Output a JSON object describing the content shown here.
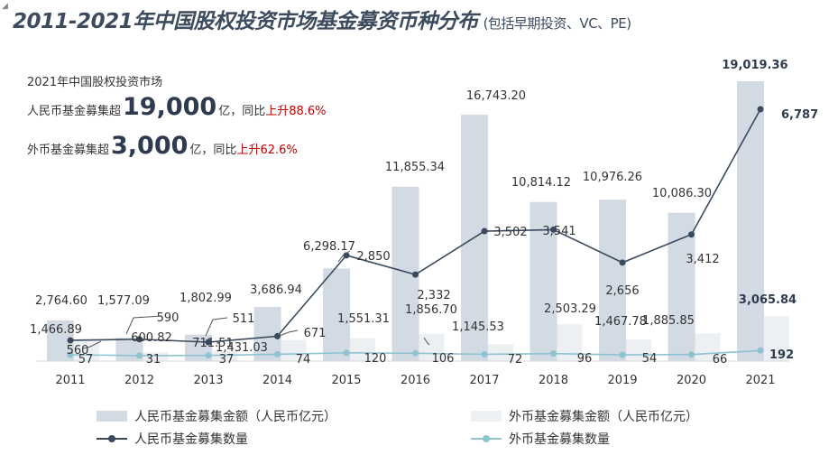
{
  "title": "2011-2021年中国股权投资市场基金募资币种分布",
  "subtitle": "(包括早期投资、VC、PE)",
  "annotation": {
    "line1": "2021年中国股权投资市场",
    "rmb_prefix": "人民币基金募集超",
    "rmb_big": "19,000",
    "rmb_suffix": "亿，同比",
    "rmb_change": "上升88.6%",
    "fx_prefix": "外币基金募集超",
    "fx_big": "3,000",
    "fx_suffix": "亿，同比",
    "fx_change": "上升62.6%"
  },
  "colors": {
    "rmb_bar": "#d2dae3",
    "fx_bar": "#edf0f3",
    "rmb_line": "#3a4a5e",
    "fx_line": "#8fc3d2",
    "text": "#333333",
    "red": "#c00000"
  },
  "legend": {
    "rmb_amount": "人民币基金募集金额（人民币亿元）",
    "fx_amount": "外币基金募集金额（人民币亿元）",
    "rmb_count": "人民币基金募集数量",
    "fx_count": "外币基金募集数量"
  },
  "chart_data": {
    "type": "bar",
    "categories": [
      "2011",
      "2012",
      "2013",
      "2014",
      "2015",
      "2016",
      "2017",
      "2018",
      "2019",
      "2020",
      "2021"
    ],
    "series": [
      {
        "name": "人民币基金募集金额（人民币亿元）",
        "kind": "bar",
        "axis": "amount",
        "values": [
          2764.6,
          1577.09,
          1802.99,
          3686.94,
          6298.17,
          11855.34,
          16743.2,
          10814.12,
          10976.26,
          10086.3,
          19019.36
        ],
        "labels": [
          "2,764.60",
          "1,577.09",
          "1,802.99",
          "3,686.94",
          "6,298.17",
          "11,855.34",
          "16,743.20",
          "10,814.12",
          "10,976.26",
          "10,086.30",
          "19,019.36"
        ]
      },
      {
        "name": "外币基金募集金额（人民币亿元）",
        "kind": "bar",
        "axis": "amount",
        "values": [
          1466.89,
          600.82,
          711.51,
          1431.03,
          1551.31,
          1856.7,
          1145.53,
          2503.29,
          1467.78,
          1885.85,
          3065.84
        ],
        "labels": [
          "1,466.89",
          "600.82",
          "711.51",
          "1,431.03",
          "1,551.31",
          "1,856.70",
          "1,145.53",
          "2,503.29",
          "1,467.78",
          "1,885.85",
          "3,065.84"
        ]
      },
      {
        "name": "人民币基金募集数量",
        "kind": "line",
        "axis": "count",
        "values": [
          560,
          590,
          511,
          671,
          2850,
          2332,
          3502,
          3541,
          2656,
          3412,
          6787
        ],
        "labels": [
          "560",
          "590",
          "511",
          "671",
          "2,850",
          "2,332",
          "3,502",
          "3,541",
          "2,656",
          "3,412",
          "6,787"
        ]
      },
      {
        "name": "外币基金募集数量",
        "kind": "line",
        "axis": "count",
        "values": [
          57,
          31,
          37,
          74,
          120,
          106,
          72,
          96,
          54,
          66,
          192
        ],
        "labels": [
          "57",
          "31",
          "37",
          "74",
          "120",
          "106",
          "72",
          "96",
          "54",
          "66",
          "192"
        ]
      }
    ],
    "grid": false,
    "legend_position": "bottom"
  }
}
